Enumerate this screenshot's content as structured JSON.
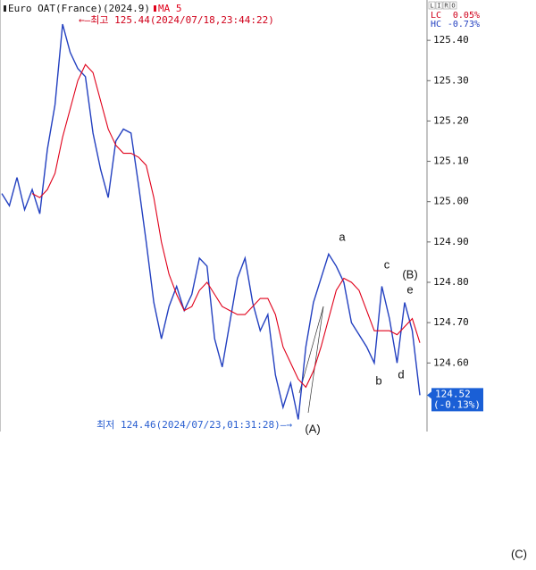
{
  "chart_data": {
    "type": "line",
    "title": "Euro OAT(France)(2024.9)",
    "buttons": [
      "L",
      "I",
      "R",
      "O"
    ],
    "stats": [
      {
        "label": "LC",
        "text": "0.05%"
      },
      {
        "label": "HC",
        "text": "-0.73%"
      }
    ],
    "high_note": "←—최고 125.44(2024/07/18,23:44:22)",
    "low_note": "최저 124.46(2024/07/23,01:31:28)—→",
    "last_price": 124.52,
    "last_change": "(-0.13%)",
    "wave_labels": [
      "a",
      "b",
      "c",
      "d",
      "e",
      "(A)",
      "(B)",
      "(C)"
    ],
    "ylim": [
      124.43,
      125.5
    ],
    "yticks": [
      {
        "value": 124.6,
        "label": "124.60"
      },
      {
        "value": 124.7,
        "label": "124.70"
      },
      {
        "value": 124.8,
        "label": "124.80"
      },
      {
        "value": 124.9,
        "label": "124.90"
      },
      {
        "value": 125.0,
        "label": "125.00"
      },
      {
        "value": 125.1,
        "label": "125.10"
      },
      {
        "value": 125.2,
        "label": "125.20"
      },
      {
        "value": 125.3,
        "label": "125.30"
      },
      {
        "value": 125.4,
        "label": "125.40"
      }
    ],
    "grid": false,
    "series": [
      {
        "color": "#2340c0",
        "values": [
          125.02,
          124.99,
          125.06,
          124.98,
          125.03,
          124.97,
          125.13,
          125.24,
          125.44,
          125.37,
          125.33,
          125.31,
          125.17,
          125.08,
          125.01,
          125.15,
          125.18,
          125.17,
          125.04,
          124.9,
          124.75,
          124.66,
          124.74,
          124.79,
          124.73,
          124.77,
          124.86,
          124.84,
          124.66,
          124.59,
          124.7,
          124.81,
          124.86,
          124.75,
          124.68,
          124.72,
          124.57,
          124.49,
          124.55,
          124.46,
          124.64,
          124.75,
          124.81,
          124.87,
          124.84,
          124.8,
          124.7,
          124.67,
          124.64,
          124.6,
          124.79,
          124.71,
          124.6,
          124.75,
          124.68,
          124.52
        ]
      },
      {
        "name": "MA 5",
        "color": "#e0001a",
        "values": [
          null,
          null,
          null,
          null,
          125.02,
          125.01,
          125.03,
          125.07,
          125.16,
          125.23,
          125.3,
          125.34,
          125.32,
          125.25,
          125.18,
          125.14,
          125.12,
          125.12,
          125.11,
          125.09,
          125.01,
          124.9,
          124.82,
          124.77,
          124.73,
          124.74,
          124.78,
          124.8,
          124.77,
          124.74,
          124.73,
          124.72,
          124.72,
          124.74,
          124.76,
          124.76,
          124.72,
          124.64,
          124.6,
          124.56,
          124.54,
          124.58,
          124.64,
          124.71,
          124.78,
          124.81,
          124.8,
          124.78,
          124.73,
          124.68,
          124.68,
          124.68,
          124.67,
          124.69,
          124.71,
          124.65
        ]
      }
    ]
  }
}
